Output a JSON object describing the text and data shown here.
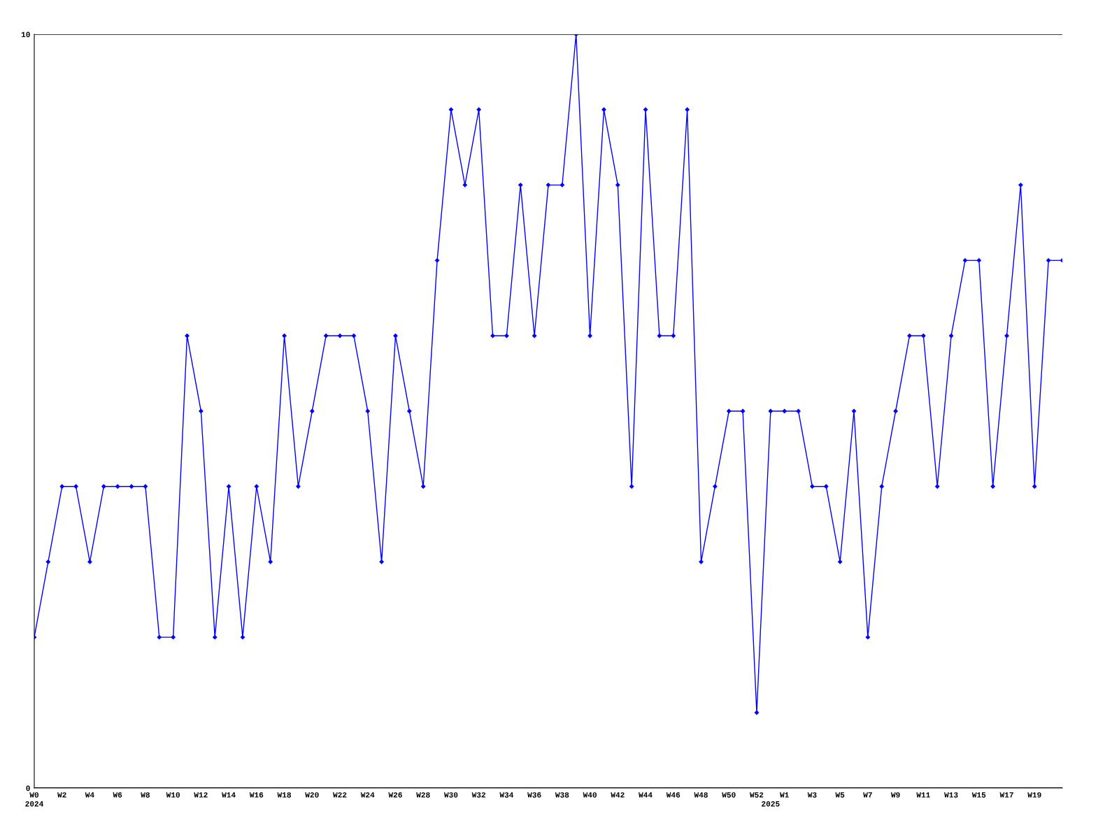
{
  "chart_data": {
    "type": "line",
    "categories": [
      "W0\n2024",
      null,
      "W2",
      null,
      "W4",
      null,
      "W6",
      null,
      "W8",
      null,
      "W10",
      null,
      "W12",
      null,
      "W14",
      null,
      "W16",
      null,
      "W18",
      null,
      "W20",
      null,
      "W22",
      null,
      "W24",
      null,
      "W26",
      null,
      "W28",
      null,
      "W30",
      null,
      "W32",
      null,
      "W34",
      null,
      "W36",
      null,
      "W38",
      null,
      "W40",
      null,
      "W42",
      null,
      "W44",
      null,
      "W46",
      null,
      "W48",
      null,
      "W50",
      null,
      "W52",
      "\n2025",
      "W1",
      null,
      "W3",
      null,
      "W5",
      null,
      "W7",
      null,
      "W9",
      null,
      "W11",
      null,
      "W13",
      null,
      "W15",
      null,
      "W17",
      null,
      "W19",
      null,
      null
    ],
    "series": [
      {
        "color": "#0000ff",
        "values": [
          2,
          3,
          4,
          4,
          3,
          4,
          4,
          4,
          4,
          2,
          2,
          6,
          5,
          2,
          4,
          2,
          4,
          3,
          6,
          4,
          5,
          6,
          6,
          6,
          5,
          3,
          6,
          5,
          4,
          7,
          9,
          8,
          9,
          6,
          6,
          8,
          6,
          8,
          8,
          10,
          6,
          9,
          8,
          4,
          9,
          6,
          6,
          9,
          3,
          4,
          5,
          5,
          1,
          5,
          5,
          5,
          4,
          4,
          3,
          5,
          2,
          4,
          5,
          6,
          6,
          4,
          6,
          7,
          7,
          4,
          6,
          8,
          4,
          7,
          7
        ]
      }
    ],
    "ylim": [
      0,
      10
    ],
    "yticks": [
      0,
      10
    ],
    "grid": "y",
    "marker": "diamond",
    "line_style": "solid"
  }
}
